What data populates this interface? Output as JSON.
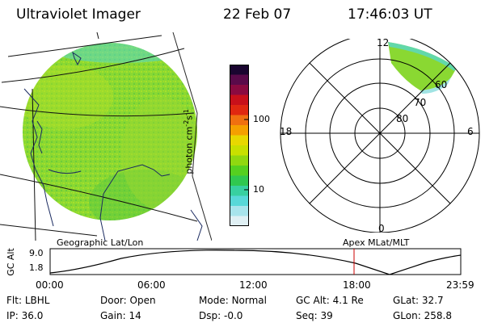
{
  "header": {
    "instrument": "Ultraviolet Imager",
    "date": "22 Feb 07",
    "time": "17:46:03 UT"
  },
  "colorbar": {
    "unit_label": "photon cm",
    "unit_exp1": "-2",
    "unit_s": "s",
    "unit_exp2": "-1",
    "ticks": [
      "100",
      "10"
    ],
    "colors": [
      "#1a0530",
      "#5a0a4a",
      "#8a0a40",
      "#c8101a",
      "#e02810",
      "#f07010",
      "#f5a000",
      "#e8d800",
      "#c8e000",
      "#90d810",
      "#55d020",
      "#30c850",
      "#38d0a0",
      "#58d8d8",
      "#a8e4ec",
      "#e0f0f4"
    ]
  },
  "geo_panel": {
    "label": "Geographic Lat/Lon",
    "emission_color": "#8ad832"
  },
  "polar_panel": {
    "label": "Apex MLat/MLT",
    "mlt_top": "12",
    "mlt_left": "18",
    "mlt_right": "6",
    "mlt_bottom": "0",
    "lat_labels": [
      "60",
      "70",
      "80"
    ]
  },
  "altitude_plot": {
    "ylabel": "GC Alt",
    "ymax_label": "9.0",
    "ymin_label": "1.8",
    "xticks": [
      "00:00",
      "06:00",
      "12:00",
      "18:00",
      "23:59"
    ],
    "cursor_color": "#cc0000"
  },
  "status": {
    "flt_label": "Flt:",
    "flt_value": "LBHL",
    "ip_label": "IP:",
    "ip_value": "36.0",
    "door_label": "Door:",
    "door_value": "Open",
    "gain_label": "Gain:",
    "gain_value": "14",
    "mode_label": "Mode:",
    "mode_value": "Normal",
    "dsp_label": "Dsp:",
    "dsp_value": "-0.0",
    "gcalt_label": "GC Alt:",
    "gcalt_value": "4.1 Re",
    "seq_label": "Seq:",
    "seq_value": "39",
    "glat_label": "GLat:",
    "glat_value": "32.7",
    "glon_label": "GLon:",
    "glon_value": "258.8"
  }
}
